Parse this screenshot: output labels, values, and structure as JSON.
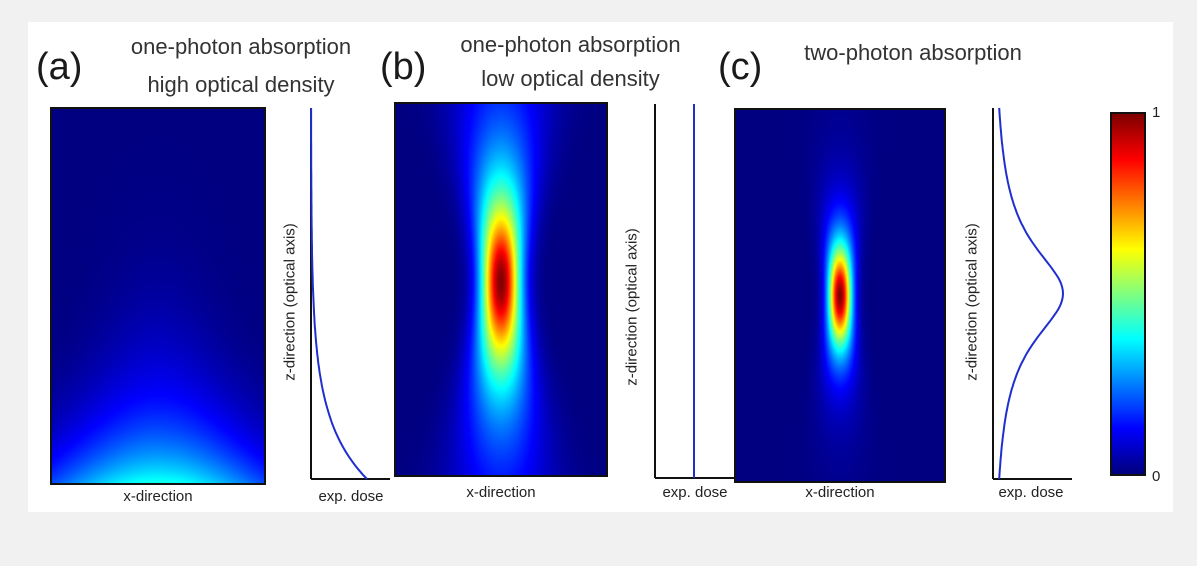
{
  "panels": [
    {
      "letter": "(a)",
      "title_line1": "one-photon absorption",
      "title_line2": "high optical density",
      "map_xlabel": "x-direction",
      "profile_ylabel": "z-direction (optical axis)",
      "profile_xlabel": "exp. dose"
    },
    {
      "letter": "(b)",
      "title_line1": "one-photon absorption",
      "title_line2": "low optical density",
      "map_xlabel": "x-direction",
      "profile_ylabel": "z-direction (optical axis)",
      "profile_xlabel": "exp. dose"
    },
    {
      "letter": "(c)",
      "title_line1": "two-photon absorption",
      "title_line2": "",
      "map_xlabel": "x-direction",
      "profile_ylabel": "z-direction (optical axis)",
      "profile_xlabel": "exp. dose"
    }
  ],
  "colorbar": {
    "max_label": "1",
    "min_label": "0",
    "colormap": "jet"
  },
  "colors": {
    "profile_line": "#1f2fcf",
    "axis": "#111111"
  }
}
